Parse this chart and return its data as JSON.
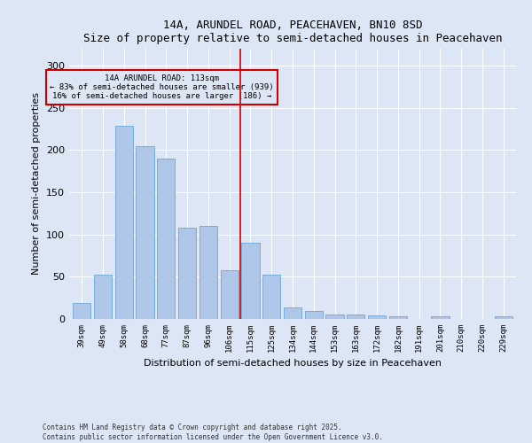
{
  "title": "14A, ARUNDEL ROAD, PEACEHAVEN, BN10 8SD",
  "subtitle": "Size of property relative to semi-detached houses in Peacehaven",
  "xlabel": "Distribution of semi-detached houses by size in Peacehaven",
  "ylabel": "Number of semi-detached properties",
  "categories": [
    "39sqm",
    "49sqm",
    "58sqm",
    "68sqm",
    "77sqm",
    "87sqm",
    "96sqm",
    "106sqm",
    "115sqm",
    "125sqm",
    "134sqm",
    "144sqm",
    "153sqm",
    "163sqm",
    "172sqm",
    "182sqm",
    "191sqm",
    "201sqm",
    "210sqm",
    "220sqm",
    "229sqm"
  ],
  "values": [
    19,
    52,
    229,
    205,
    190,
    108,
    110,
    58,
    90,
    52,
    14,
    9,
    5,
    5,
    4,
    3,
    0,
    3,
    0,
    0,
    3
  ],
  "bar_color": "#aec6e8",
  "bar_edge_color": "#5b9bd5",
  "vline_index": 8,
  "annotation_title": "14A ARUNDEL ROAD: 113sqm",
  "annotation_line1": "← 83% of semi-detached houses are smaller (939)",
  "annotation_line2": "16% of semi-detached houses are larger (186) →",
  "box_color": "#cc0000",
  "vline_color": "#cc0000",
  "background_color": "#dce6f5",
  "ylim": [
    0,
    320
  ],
  "yticks": [
    0,
    50,
    100,
    150,
    200,
    250,
    300
  ],
  "footnote_line1": "Contains HM Land Registry data © Crown copyright and database right 2025.",
  "footnote_line2": "Contains public sector information licensed under the Open Government Licence v3.0."
}
